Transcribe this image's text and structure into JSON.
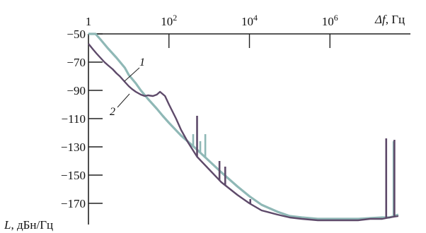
{
  "chart_data": {
    "type": "line",
    "title": "",
    "xlabel_var": "Δf",
    "xlabel_unit": ", Гц",
    "ylabel_var": "L",
    "ylabel_unit": ", дБн/Гц",
    "x_scale": "log",
    "xlim": [
      1,
      100000000
    ],
    "ylim": [
      -185,
      -50
    ],
    "x_ticks": [
      {
        "value": 1,
        "base": "1",
        "exp": ""
      },
      {
        "value": 100,
        "base": "10",
        "exp": "2"
      },
      {
        "value": 10000,
        "base": "10",
        "exp": "4"
      },
      {
        "value": 1000000,
        "base": "10",
        "exp": "6"
      }
    ],
    "y_ticks": [
      {
        "value": -50,
        "label": "−50"
      },
      {
        "value": -70,
        "label": "−70"
      },
      {
        "value": -90,
        "label": "−90"
      },
      {
        "value": -110,
        "label": "−110"
      },
      {
        "value": -130,
        "label": "−130"
      },
      {
        "value": -150,
        "label": "−150"
      },
      {
        "value": -170,
        "label": "−170"
      }
    ],
    "grid": false,
    "series": [
      {
        "label": "1",
        "color": "#8fb8b6",
        "x": [
          1,
          1.5,
          2,
          3,
          5,
          8,
          10,
          15,
          20,
          30,
          50,
          70,
          100,
          200,
          500,
          1000,
          2000,
          5000,
          10000,
          20000,
          50000,
          100000,
          200000,
          500000,
          1000000,
          2000000,
          5000000,
          10000000,
          20000000,
          30000000,
          40000000,
          50000000
        ],
        "y": [
          -47,
          -50,
          -54,
          -60,
          -67,
          -74,
          -79,
          -85,
          -90,
          -96,
          -103,
          -108,
          -113,
          -122,
          -132,
          -140,
          -148,
          -158,
          -165,
          -171,
          -176,
          -179,
          -180,
          -181,
          -181,
          -181,
          -181,
          -180.5,
          -180,
          -180,
          -179,
          -178
        ],
        "spikes": [
          {
            "x": 400,
            "top": -121
          },
          {
            "x": 600,
            "top": -126
          },
          {
            "x": 800,
            "top": -121
          },
          {
            "x": 38000000,
            "top": -126
          }
        ]
      },
      {
        "label": "2",
        "color": "#5e4a6a",
        "x": [
          1,
          1.3,
          1.6,
          2,
          2.5,
          3,
          4,
          5,
          6,
          8,
          10,
          12,
          15,
          20,
          25,
          30,
          40,
          50,
          60,
          80,
          100,
          150,
          200,
          300,
          500,
          1000,
          2000,
          5000,
          10000,
          20000,
          50000,
          100000,
          200000,
          500000,
          1000000,
          2000000,
          5000000,
          10000000,
          20000000,
          30000000,
          50000000
        ],
        "y": [
          -57,
          -61,
          -64,
          -67,
          -70,
          -72,
          -75,
          -78,
          -80,
          -84,
          -87,
          -89,
          -91,
          -93,
          -94,
          -93.5,
          -94,
          -93,
          -91,
          -94,
          -100,
          -110,
          -118,
          -127,
          -137,
          -146,
          -155,
          -164,
          -170,
          -175,
          -178,
          -180,
          -181,
          -182,
          -182,
          -182,
          -182,
          -181,
          -181,
          -180,
          -179
        ],
        "spikes": [
          {
            "x": 500,
            "top": -108
          },
          {
            "x": 1800,
            "top": -140
          },
          {
            "x": 2500,
            "top": -144
          },
          {
            "x": 10500,
            "top": -167
          },
          {
            "x": 25000000,
            "top": -124
          },
          {
            "x": 40000000,
            "top": -125
          }
        ]
      }
    ]
  }
}
